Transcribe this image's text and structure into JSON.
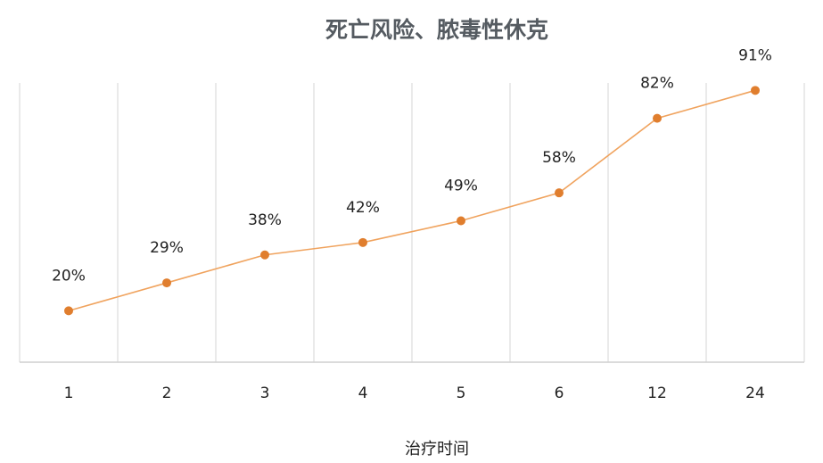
{
  "chart_data": {
    "type": "line",
    "title": "死亡风险、脓毒性休克",
    "xlabel": "治疗时间",
    "ylabel": "",
    "categories": [
      "1",
      "2",
      "3",
      "4",
      "5",
      "6",
      "12",
      "24"
    ],
    "values": [
      20,
      29,
      38,
      42,
      49,
      58,
      82,
      91
    ],
    "data_labels": [
      "20%",
      "29%",
      "38%",
      "42%",
      "49%",
      "58%",
      "82%",
      "91%"
    ],
    "grid": "vertical",
    "legend": "none",
    "colors": {
      "line": "#f0a35e",
      "marker": "#e07e2e"
    }
  }
}
